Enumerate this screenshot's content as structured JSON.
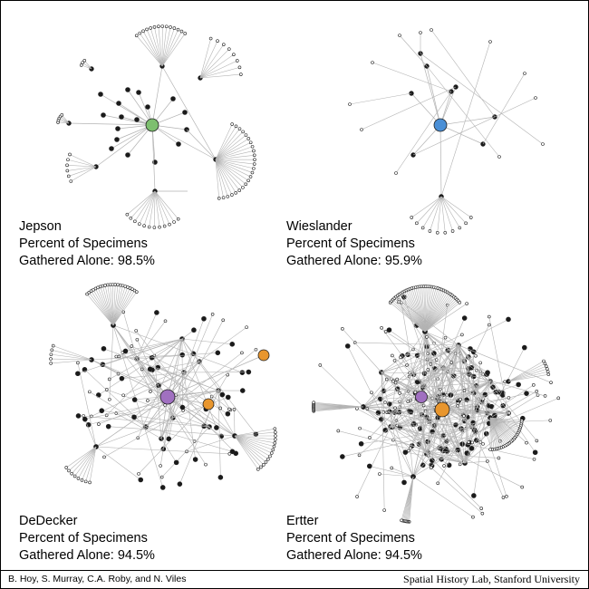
{
  "panels": [
    {
      "name": "Jepson",
      "line2": "Percent of Specimens",
      "line3": "Gathered Alone: 98.5%",
      "center_color": "#7dbf6f"
    },
    {
      "name": "Wieslander",
      "line2": "Percent of Specimens",
      "line3": "Gathered Alone: 95.9%",
      "center_color": "#4a8fd6"
    },
    {
      "name": "DeDecker",
      "line2": "Percent of Specimens",
      "line3": "Gathered Alone: 94.5%",
      "center_color": "#a070c0",
      "extra_color": "#e8962e"
    },
    {
      "name": "Ertter",
      "line2": "Percent of Specimens",
      "line3": "Gathered Alone: 94.5%",
      "center_color": "#a070c0",
      "extra_color": "#e8962e"
    }
  ],
  "footer": {
    "credits": "B. Hoy, S. Murray, C.A. Roby, and N. Viles",
    "lab": "Spatial History Lab, Stanford University"
  }
}
